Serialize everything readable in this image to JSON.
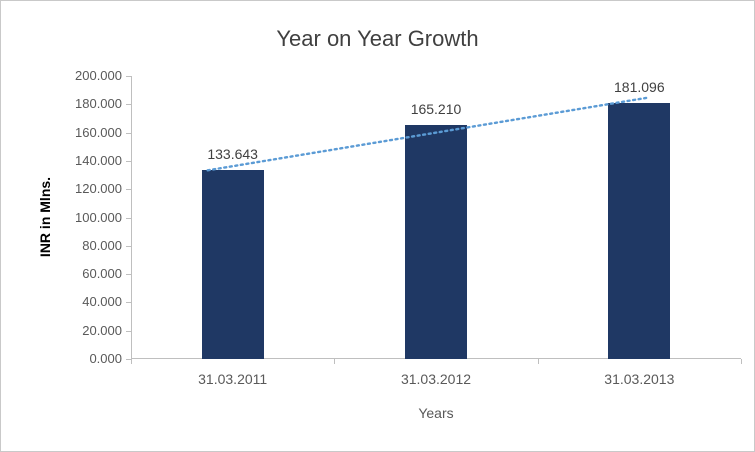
{
  "chart_data": {
    "type": "bar",
    "title": "Year on Year Growth",
    "xlabel": "Years",
    "ylabel": "INR in Mlns.",
    "categories": [
      "31.03.2011",
      "31.03.2012",
      "31.03.2013"
    ],
    "values": [
      133.643,
      165.21,
      181.096
    ],
    "data_labels": [
      "133.643",
      "165.210",
      "181.096"
    ],
    "ylim": [
      0,
      200
    ],
    "y_tick_step": 20,
    "y_tick_labels": [
      "0.000",
      "20.000",
      "40.000",
      "60.000",
      "80.000",
      "100.000",
      "120.000",
      "140.000",
      "160.000",
      "180.000",
      "200.000"
    ],
    "grid": false,
    "legend": "none",
    "bar_color": "#1F3864",
    "axis_color": "#BFBFBF",
    "trendline": {
      "type": "linear",
      "color": "#5B9BD5",
      "style": "dotted"
    }
  }
}
